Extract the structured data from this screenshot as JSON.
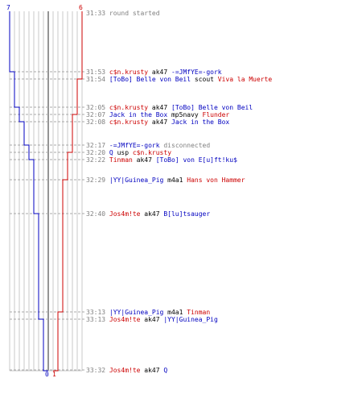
{
  "colors": {
    "blue": "#0000c0",
    "red": "#cc0000",
    "gray": "#808080",
    "black": "#000000",
    "grid": "#c8c8c8",
    "center": "#707070"
  },
  "timeline": {
    "start_label_blue": "7",
    "start_label_red": "6",
    "end_label_blue": "0",
    "end_label_red": "1"
  },
  "events": [
    {
      "time": "31:33",
      "parts": [
        {
          "t": "round started",
          "c": "gray"
        }
      ]
    },
    {
      "time": "31:53",
      "parts": [
        {
          "t": "c$n.krusty",
          "c": "red"
        },
        {
          "t": " ak47 ",
          "c": "black"
        },
        {
          "t": "-=JMfYE=-gork",
          "c": "blue"
        }
      ]
    },
    {
      "time": "31:54",
      "parts": [
        {
          "t": "[ToBo] Belle von Beil",
          "c": "blue"
        },
        {
          "t": " scout ",
          "c": "black"
        },
        {
          "t": "Viva la Muerte",
          "c": "red"
        }
      ]
    },
    {
      "time": "32:05",
      "parts": [
        {
          "t": "c$n.krusty",
          "c": "red"
        },
        {
          "t": " ak47 ",
          "c": "black"
        },
        {
          "t": "[ToBo] Belle von Beil",
          "c": "blue"
        }
      ]
    },
    {
      "time": "32:07",
      "parts": [
        {
          "t": "Jack in the Box",
          "c": "blue"
        },
        {
          "t": " mp5navy ",
          "c": "black"
        },
        {
          "t": "Flunder",
          "c": "red"
        }
      ]
    },
    {
      "time": "32:08",
      "parts": [
        {
          "t": "c$n.krusty",
          "c": "red"
        },
        {
          "t": " ak47 ",
          "c": "black"
        },
        {
          "t": "Jack in the Box",
          "c": "blue"
        }
      ]
    },
    {
      "time": "32:17",
      "parts": [
        {
          "t": "-=JMfYE=-gork",
          "c": "blue"
        },
        {
          "t": " disconnected",
          "c": "gray"
        }
      ]
    },
    {
      "time": "32:20",
      "parts": [
        {
          "t": "Q",
          "c": "blue"
        },
        {
          "t": " usp ",
          "c": "black"
        },
        {
          "t": "c$n.krusty",
          "c": "red"
        }
      ]
    },
    {
      "time": "32:22",
      "parts": [
        {
          "t": "Tinman",
          "c": "red"
        },
        {
          "t": " ak47 ",
          "c": "black"
        },
        {
          "t": "[ToBo] von E[u]ft!ku$",
          "c": "blue"
        }
      ]
    },
    {
      "time": "32:29",
      "parts": [
        {
          "t": "|YY|Guinea_Pig",
          "c": "blue"
        },
        {
          "t": " m4a1 ",
          "c": "black"
        },
        {
          "t": "Hans von Hammer",
          "c": "red"
        }
      ]
    },
    {
      "time": "32:40",
      "parts": [
        {
          "t": "Jos4m!te",
          "c": "red"
        },
        {
          "t": " ak47 ",
          "c": "black"
        },
        {
          "t": "B[lu]tsauger",
          "c": "blue"
        }
      ]
    },
    {
      "time": "33:13",
      "parts": [
        {
          "t": "|YY|Guinea_Pig",
          "c": "blue"
        },
        {
          "t": " m4a1 ",
          "c": "black"
        },
        {
          "t": "Tinman",
          "c": "red"
        }
      ]
    },
    {
      "time": "33:13",
      "parts": [
        {
          "t": "Jos4m!te",
          "c": "red"
        },
        {
          "t": " ak47 ",
          "c": "black"
        },
        {
          "t": "|YY|Guinea_Pig",
          "c": "blue"
        }
      ]
    },
    {
      "time": "33:32",
      "parts": [
        {
          "t": "Jos4m!te",
          "c": "red"
        },
        {
          "t": " ak47 ",
          "c": "black"
        },
        {
          "t": "Q",
          "c": "blue"
        }
      ]
    }
  ]
}
